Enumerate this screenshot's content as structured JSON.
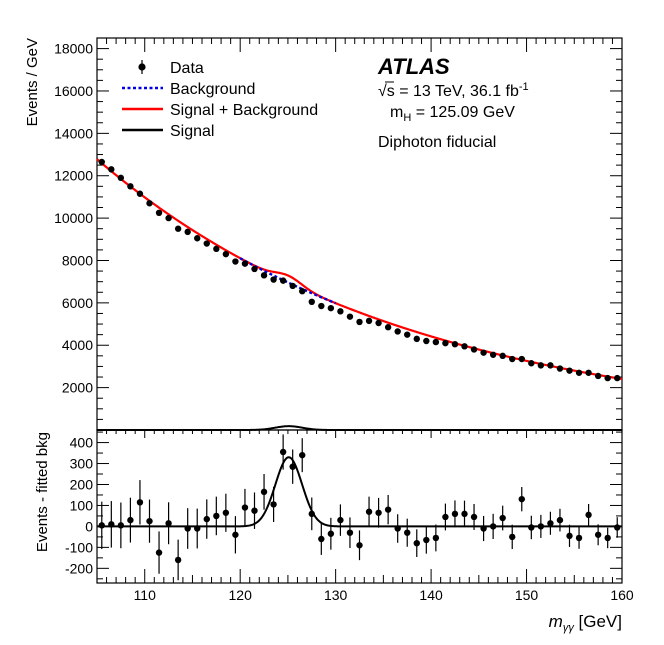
{
  "chart_data": [
    {
      "type": "scatter",
      "panel": "main",
      "ylabel": "Events / GeV",
      "xlim": [
        105,
        160
      ],
      "ylim": [
        0,
        18500
      ],
      "yticks": [
        2000,
        4000,
        6000,
        8000,
        10000,
        12000,
        14000,
        16000,
        18000
      ],
      "experiment_label": "ATLAS",
      "annotations": [
        "√s = 13 TeV, 36.1 fb",
        "-1",
        "m",
        "H",
        " = 125.09 GeV",
        "Diphoton fiducial"
      ],
      "legend_placement": "top-left",
      "legend": [
        {
          "label": "Data",
          "style": "marker",
          "color": "#000000"
        },
        {
          "label": "Background",
          "style": "dotted",
          "color": "#0000dd"
        },
        {
          "label": "Signal + Background",
          "style": "solid",
          "color": "#ff0000"
        },
        {
          "label": "Signal",
          "style": "solid",
          "color": "#000000"
        }
      ],
      "data": {
        "x": [
          105.5,
          106.5,
          107.5,
          108.5,
          109.5,
          110.5,
          111.5,
          112.5,
          113.5,
          114.5,
          115.5,
          116.5,
          117.5,
          118.5,
          119.5,
          120.5,
          121.5,
          122.5,
          123.5,
          124.5,
          125.5,
          126.5,
          127.5,
          128.5,
          129.5,
          130.5,
          131.5,
          132.5,
          133.5,
          134.5,
          135.5,
          136.5,
          137.5,
          138.5,
          139.5,
          140.5,
          141.5,
          142.5,
          143.5,
          144.5,
          145.5,
          146.5,
          147.5,
          148.5,
          149.5,
          150.5,
          151.5,
          152.5,
          153.5,
          154.5,
          155.5,
          156.5,
          157.5,
          158.5,
          159.5
        ],
        "y": [
          12650,
          12300,
          11900,
          11500,
          11150,
          10700,
          10250,
          10000,
          9500,
          9350,
          9050,
          8800,
          8550,
          8300,
          7950,
          7850,
          7600,
          7300,
          7100,
          7050,
          6800,
          6550,
          6050,
          5850,
          5750,
          5600,
          5350,
          5100,
          5150,
          5050,
          4850,
          4650,
          4500,
          4300,
          4200,
          4150,
          4100,
          4050,
          3950,
          3800,
          3650,
          3550,
          3500,
          3350,
          3350,
          3150,
          3050,
          3050,
          2900,
          2800,
          2700,
          2700,
          2550,
          2450,
          2450
        ],
        "yerr": [
          113,
          111,
          109,
          107,
          106,
          103,
          101,
          100,
          97,
          97,
          95,
          94,
          92,
          91,
          89,
          89,
          87,
          85,
          84,
          84,
          82,
          81,
          78,
          76,
          76,
          75,
          73,
          71,
          72,
          71,
          70,
          68,
          67,
          66,
          65,
          64,
          64,
          64,
          63,
          62,
          60,
          60,
          59,
          58,
          58,
          56,
          55,
          55,
          54,
          53,
          52,
          52,
          50,
          49,
          49
        ]
      },
      "background_fit": {
        "model": "exponential",
        "a": 12780,
        "b": 0.03035,
        "x0": 105
      },
      "signal_fit": {
        "model": "gaussian",
        "mass": 125.09,
        "peak": 330,
        "sigma": 1.4
      }
    },
    {
      "type": "scatter",
      "panel": "residual",
      "xlabel": "m",
      "xlabel_sub": "γγ",
      "xlabel_unit": " [GeV]",
      "ylabel": "Events - fitted bkg",
      "xlim": [
        105,
        160
      ],
      "ylim": [
        -270,
        460
      ],
      "xticks": [
        110,
        120,
        130,
        140,
        150,
        160
      ],
      "yticks": [
        -200,
        -100,
        0,
        100,
        200,
        300,
        400
      ],
      "data": {
        "x": [
          105.5,
          106.5,
          107.5,
          108.5,
          109.5,
          110.5,
          111.5,
          112.5,
          113.5,
          114.5,
          115.5,
          116.5,
          117.5,
          118.5,
          119.5,
          120.5,
          121.5,
          122.5,
          123.5,
          124.5,
          125.5,
          126.5,
          127.5,
          128.5,
          129.5,
          130.5,
          131.5,
          132.5,
          133.5,
          134.5,
          135.5,
          136.5,
          137.5,
          138.5,
          139.5,
          140.5,
          141.5,
          142.5,
          143.5,
          144.5,
          145.5,
          146.5,
          147.5,
          148.5,
          149.5,
          150.5,
          151.5,
          152.5,
          153.5,
          154.5,
          155.5,
          156.5,
          157.5,
          158.5,
          159.5
        ],
        "y": [
          5,
          10,
          5,
          30,
          115,
          25,
          -125,
          15,
          -160,
          -10,
          -10,
          35,
          50,
          65,
          -40,
          90,
          75,
          165,
          105,
          355,
          285,
          340,
          60,
          -60,
          -35,
          30,
          -30,
          -90,
          70,
          65,
          80,
          -10,
          -30,
          -80,
          -65,
          -55,
          45,
          60,
          60,
          45,
          -10,
          0,
          40,
          -50,
          130,
          -5,
          0,
          15,
          30,
          -45,
          -55,
          55,
          -40,
          -55,
          -5
        ],
        "yerr": [
          113,
          111,
          109,
          107,
          106,
          103,
          101,
          100,
          97,
          97,
          95,
          94,
          92,
          91,
          89,
          89,
          87,
          85,
          84,
          84,
          82,
          81,
          78,
          76,
          76,
          75,
          73,
          71,
          72,
          71,
          70,
          68,
          67,
          66,
          65,
          64,
          64,
          64,
          63,
          62,
          60,
          60,
          59,
          58,
          58,
          56,
          55,
          55,
          54,
          53,
          52,
          52,
          50,
          49,
          49
        ]
      },
      "signal_fit": {
        "model": "gaussian",
        "mass": 125.09,
        "peak": 330,
        "sigma": 1.4
      }
    }
  ]
}
